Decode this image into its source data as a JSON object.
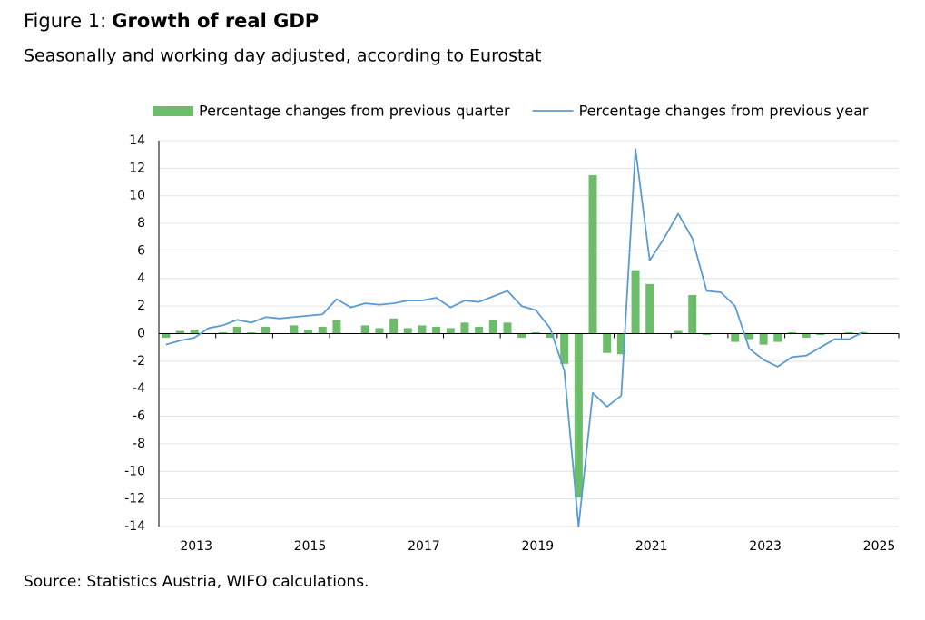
{
  "chart_data": {
    "type": "bar_line",
    "figure_label": "Figure 1:",
    "title": "Growth of real GDP",
    "subtitle": "Seasonally and working day adjusted, according to Eurostat",
    "source": "Source: Statistics Austria, WIFO calculations.",
    "categories": [
      null,
      null,
      "2013",
      null,
      null,
      null,
      null,
      null,
      null,
      null,
      "2015",
      null,
      null,
      null,
      null,
      null,
      null,
      null,
      "2017",
      null,
      null,
      null,
      null,
      null,
      null,
      null,
      "2019",
      null,
      null,
      null,
      null,
      null,
      null,
      null,
      "2021",
      null,
      null,
      null,
      null,
      null,
      null,
      null,
      "2023",
      null,
      null,
      null,
      null,
      null,
      null,
      null,
      "2025",
      null
    ],
    "series": [
      {
        "name": "Percentage changes from previous quarter",
        "kind": "bar",
        "color": "#6cbd6a",
        "values": [
          -0.3,
          0.2,
          0.3,
          0.0,
          0.1,
          0.5,
          0.1,
          0.5,
          0.0,
          0.6,
          0.3,
          0.5,
          1.0,
          0.0,
          0.6,
          0.4,
          1.1,
          0.4,
          0.6,
          0.5,
          0.4,
          0.8,
          0.5,
          1.0,
          0.8,
          -0.3,
          0.1,
          -0.3,
          -2.2,
          -11.9,
          11.5,
          -1.4,
          -1.5,
          4.6,
          3.6,
          0.0,
          0.2,
          2.8,
          -0.1,
          0.0,
          -0.6,
          -0.4,
          -0.8,
          -0.6,
          0.1,
          -0.3,
          -0.1,
          0.0,
          0.1,
          0.1,
          null,
          null
        ]
      },
      {
        "name": "Percentage changes from previous year",
        "kind": "line",
        "color": "#5b9bd5",
        "values": [
          -0.8,
          -0.5,
          -0.3,
          0.4,
          0.6,
          1.0,
          0.8,
          1.2,
          1.1,
          1.2,
          1.3,
          1.4,
          2.5,
          1.9,
          2.2,
          2.1,
          2.2,
          2.4,
          2.4,
          2.6,
          1.9,
          2.4,
          2.3,
          2.7,
          3.1,
          2.0,
          1.7,
          0.4,
          -2.7,
          -14.0,
          -4.3,
          -5.3,
          -4.5,
          13.4,
          5.3,
          6.9,
          8.7,
          6.9,
          3.1,
          3.0,
          2.0,
          -1.1,
          -1.9,
          -2.4,
          -1.7,
          -1.6,
          -1.0,
          -0.4,
          -0.4,
          0.1,
          null,
          null
        ]
      }
    ],
    "ylim": [
      -14,
      14
    ],
    "yticks": [
      -14,
      -12,
      -10,
      -8,
      -6,
      -4,
      -2,
      0,
      2,
      4,
      6,
      8,
      10,
      12,
      14
    ],
    "grid": true,
    "legend": "top"
  }
}
